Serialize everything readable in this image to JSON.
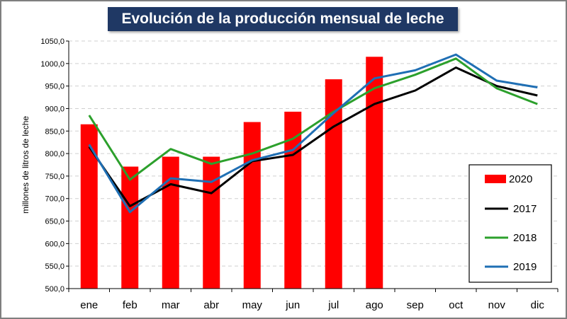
{
  "chart_data": {
    "type": "bar+line",
    "title": "Evolución de la producción mensual de leche",
    "ylabel": "millones de litros de leche",
    "xlabel": "",
    "ylim": [
      500,
      1050
    ],
    "ytick_step": 50,
    "yticks": [
      "500,0",
      "550,0",
      "600,0",
      "650,0",
      "700,0",
      "750,0",
      "800,0",
      "850,0",
      "900,0",
      "950,0",
      "1000,0",
      "1050,0"
    ],
    "grid": true,
    "legend_position": "right",
    "categories": [
      "ene",
      "feb",
      "mar",
      "abr",
      "may",
      "jun",
      "jul",
      "ago",
      "sep",
      "oct",
      "nov",
      "dic"
    ],
    "bars": {
      "name": "2020",
      "color": "#ff0000",
      "values": [
        865,
        771,
        793,
        793,
        870,
        893,
        965,
        1015,
        null,
        null,
        null,
        null
      ]
    },
    "series": [
      {
        "name": "2017",
        "color": "#000000",
        "values": [
          815,
          683,
          732,
          712,
          783,
          797,
          860,
          910,
          940,
          991,
          950,
          929
        ]
      },
      {
        "name": "2018",
        "color": "#2ca02c",
        "values": [
          885,
          742,
          810,
          777,
          800,
          833,
          893,
          945,
          975,
          1011,
          945,
          910
        ]
      },
      {
        "name": "2019",
        "color": "#1f6fb4",
        "values": [
          820,
          670,
          745,
          737,
          785,
          808,
          890,
          967,
          985,
          1020,
          962,
          947
        ]
      }
    ]
  }
}
